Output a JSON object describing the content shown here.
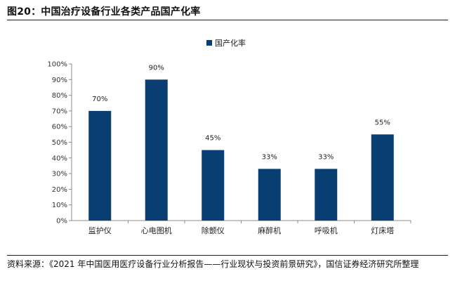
{
  "figure": {
    "title": "图20：中国治疗设备行业各类产品国产化率",
    "source": "资料来源：《2021 年中国医用医疗设备行业分析报告——行业现状与投资前景研究》，国信证券经济研究所整理"
  },
  "chart_data": {
    "type": "bar",
    "categories": [
      "监护仪",
      "心电图机",
      "除颤仪",
      "麻醉机",
      "呼吸机",
      "灯床塔"
    ],
    "series": [
      {
        "name": "国产化率",
        "values": [
          70,
          90,
          45,
          33,
          33,
          55
        ],
        "color": "#083e72"
      }
    ],
    "data_labels": [
      "70%",
      "90%",
      "45%",
      "33%",
      "33%",
      "55%"
    ],
    "y_ticks": [
      "0%",
      "10%",
      "20%",
      "30%",
      "40%",
      "50%",
      "60%",
      "70%",
      "80%",
      "90%",
      "100%"
    ],
    "ylim": [
      0,
      100
    ],
    "grid": false,
    "legend_position": "top-center"
  }
}
